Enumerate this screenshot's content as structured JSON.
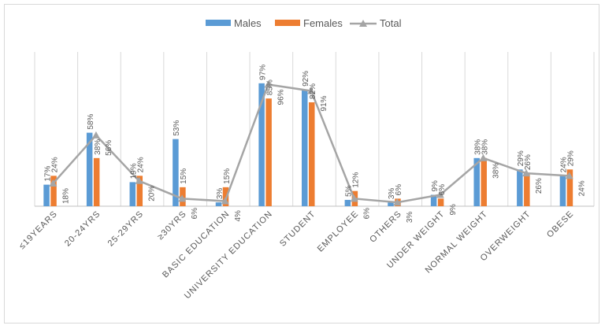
{
  "chart_data": {
    "type": "bar",
    "title": "",
    "xlabel": "",
    "ylabel": "",
    "ylim": [
      0,
      100
    ],
    "grid": "vertical",
    "legend_position": "top",
    "categories": [
      "≤19YEARS",
      "20-24YRS",
      "25-29YRS",
      "≥30YRS",
      "BASIC EDUCATION",
      "UNIVERSITY EDUCATION",
      "STUDENT",
      "EMPLOYEE",
      "OTHERS",
      "UNDER WEIGHT",
      "NORMAL WEIGHT",
      "OVERWEIGHT",
      "OBESE"
    ],
    "series": [
      {
        "name": "Males",
        "type": "bar",
        "color": "#5B9BD5",
        "values": [
          17,
          58,
          19,
          53,
          3,
          97,
          92,
          5,
          3,
          9,
          38,
          29,
          24
        ]
      },
      {
        "name": "Females",
        "type": "bar",
        "color": "#ED7D31",
        "values": [
          24,
          38,
          24,
          15,
          15,
          85,
          82,
          12,
          6,
          6,
          38,
          26,
          29
        ]
      },
      {
        "name": "Total",
        "type": "line",
        "color": "#A5A5A5",
        "values": [
          18,
          56,
          20,
          6,
          4,
          96,
          91,
          6,
          3,
          9,
          38,
          26,
          24
        ]
      }
    ]
  }
}
